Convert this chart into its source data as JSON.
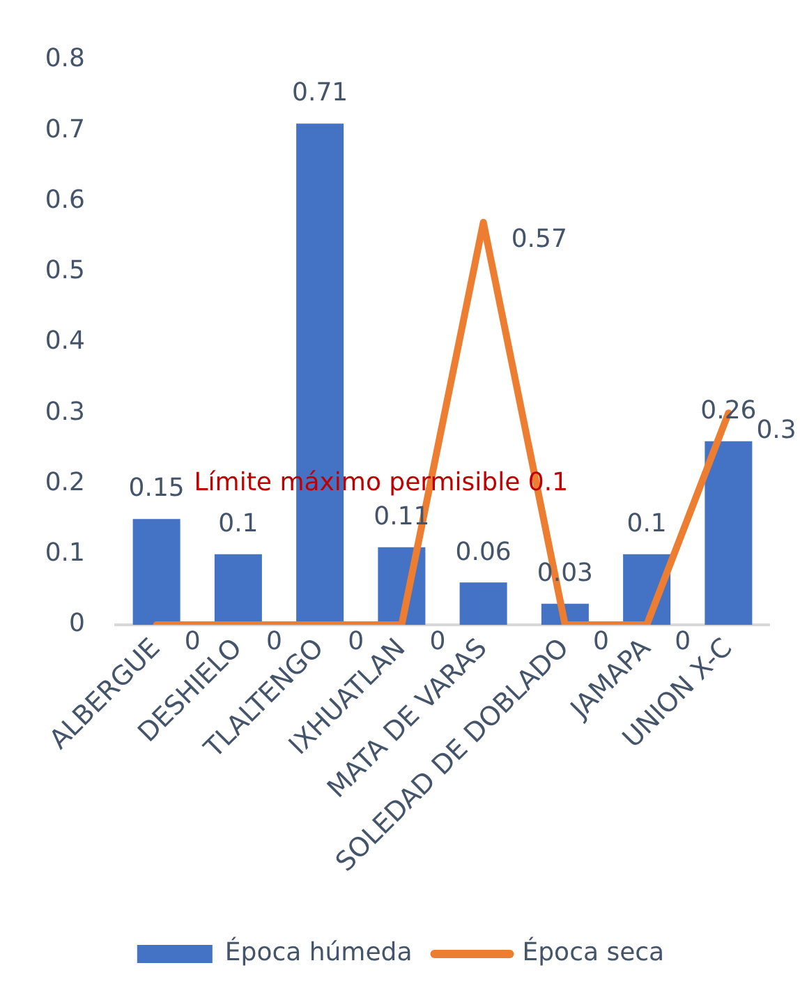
{
  "chart_data": {
    "type": "bar",
    "categories": [
      "ALBERGUE",
      "DESHIELO",
      "TLALTENGO",
      "IXHUATLAN",
      "MATA DE VARAS",
      "SOLEDAD DE DOBLADO",
      "JAMAPA",
      "UNION X-C"
    ],
    "series": [
      {
        "name": "Época húmeda",
        "color": "#4472c4",
        "values": [
          0.15,
          0.1,
          0.71,
          0.11,
          0.06,
          0.03,
          0.1,
          0.26
        ]
      },
      {
        "name": "Época seca",
        "type": "line",
        "color": "#ed7d31",
        "values": [
          0,
          0,
          0,
          0,
          0.57,
          0,
          0,
          0.3
        ]
      }
    ],
    "ylim": [
      0,
      0.8
    ],
    "yticks": [
      0,
      0.1,
      0.2,
      0.3,
      0.4,
      0.5,
      0.6,
      0.7,
      0.8
    ],
    "grid": false,
    "legend": "bottom",
    "data_labels": true,
    "marker": "none",
    "line_style": "solid",
    "annotations": [
      "Límite máximo permisible 0.1"
    ]
  }
}
